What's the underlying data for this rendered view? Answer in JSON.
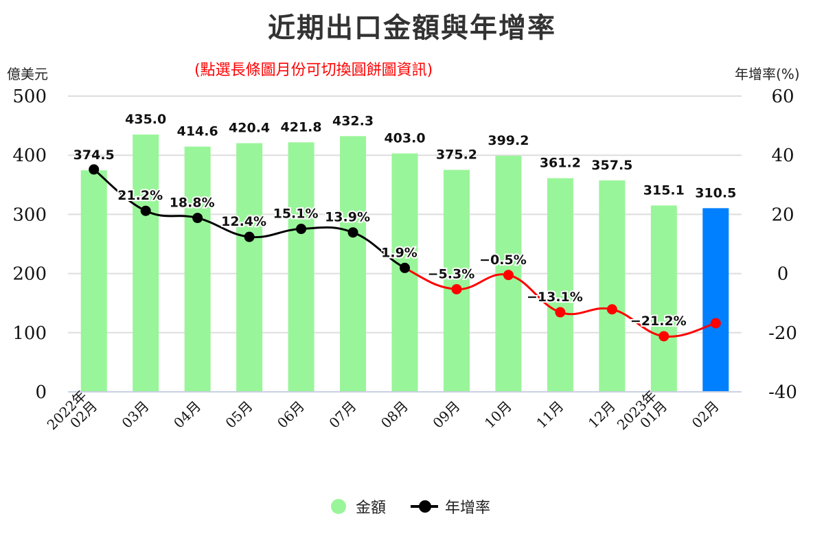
{
  "chart_data": {
    "type": "bar+line",
    "title": "近期出口金額與年增率",
    "subtitle": "(點選長條圖月份可切換圓餅圖資訊)",
    "ylabel_left": "億美元",
    "ylabel_right": "年增率(%)",
    "ylim_left": [
      0,
      500
    ],
    "yticks_left": [
      "0",
      "100",
      "200",
      "300",
      "400",
      "500"
    ],
    "ylim_right": [
      -40,
      60
    ],
    "yticks_right": [
      "-40",
      "-20",
      "0",
      "20",
      "40",
      "60"
    ],
    "grid": true,
    "legend_position": "bottom",
    "categories": [
      [
        "2022年",
        "02月"
      ],
      [
        "03月"
      ],
      [
        "04月"
      ],
      [
        "05月"
      ],
      [
        "06月"
      ],
      [
        "07月"
      ],
      [
        "08月"
      ],
      [
        "09月"
      ],
      [
        "10月"
      ],
      [
        "11月"
      ],
      [
        "12月"
      ],
      [
        "2023年",
        "01月"
      ],
      [
        "02月"
      ]
    ],
    "series": [
      {
        "name": "金額",
        "type": "bar",
        "color": "#99f599",
        "highlight_color": "#0080ff",
        "highlight_index": 12,
        "values": [
          374.5,
          435.0,
          414.6,
          420.4,
          421.8,
          432.3,
          403.0,
          375.2,
          399.2,
          361.2,
          357.5,
          315.1,
          310.5
        ],
        "labels": [
          "374.5",
          "435.0",
          "414.6",
          "420.4",
          "421.8",
          "432.3",
          "403.0",
          "375.2",
          "399.2",
          "361.2",
          "357.5",
          "315.1",
          "310.5"
        ]
      },
      {
        "name": "年增率",
        "type": "line",
        "axis": "right",
        "color_positive": "#000000",
        "color_negative": "#ff0000",
        "values": [
          35.2,
          21.2,
          18.8,
          12.4,
          15.1,
          13.9,
          1.9,
          -5.3,
          -0.5,
          -13.1,
          -12.1,
          -21.2,
          -16.8
        ],
        "labels": [
          null,
          "21.2%",
          "18.8%",
          "12.4%",
          "15.1%",
          "13.9%",
          "1.9%",
          "−5.3%",
          "−0.5%",
          "−13.1%",
          null,
          "−21.2%",
          null
        ]
      }
    ]
  }
}
